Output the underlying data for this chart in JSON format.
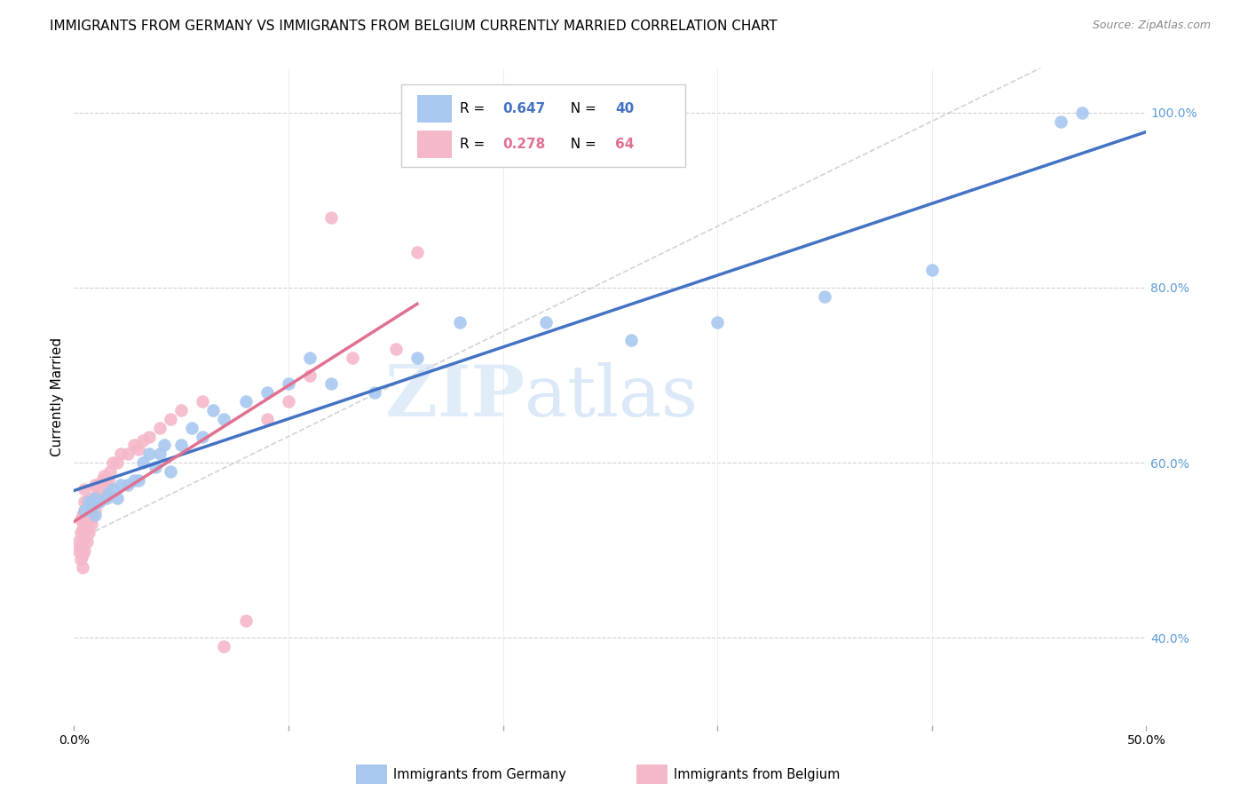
{
  "title": "IMMIGRANTS FROM GERMANY VS IMMIGRANTS FROM BELGIUM CURRENTLY MARRIED CORRELATION CHART",
  "source": "Source: ZipAtlas.com",
  "ylabel": "Currently Married",
  "xlim": [
    0.0,
    0.5
  ],
  "ylim": [
    0.3,
    1.05
  ],
  "xticks": [
    0.0,
    0.1,
    0.2,
    0.3,
    0.4,
    0.5
  ],
  "xtick_labels": [
    "0.0%",
    "",
    "",
    "",
    "",
    "50.0%"
  ],
  "yticks": [
    0.4,
    0.6,
    0.8,
    1.0
  ],
  "ytick_labels": [
    "40.0%",
    "60.0%",
    "80.0%",
    "100.0%"
  ],
  "right_ytick_color": "#5b9bd5",
  "germany_color": "#a8c8f0",
  "belgium_color": "#f5b8c8",
  "germany_line_color": "#4472c4",
  "belgium_line_color": "#e07090",
  "germany_R": 0.647,
  "germany_N": 40,
  "belgium_R": 0.278,
  "belgium_N": 64,
  "watermark_zip": "ZIP",
  "watermark_atlas": "atlas",
  "germany_points_x": [
    0.005,
    0.007,
    0.008,
    0.01,
    0.01,
    0.012,
    0.015,
    0.016,
    0.018,
    0.02,
    0.022,
    0.025,
    0.028,
    0.03,
    0.032,
    0.035,
    0.038,
    0.04,
    0.042,
    0.045,
    0.05,
    0.055,
    0.06,
    0.065,
    0.07,
    0.08,
    0.09,
    0.1,
    0.11,
    0.12,
    0.14,
    0.16,
    0.18,
    0.22,
    0.26,
    0.3,
    0.35,
    0.4,
    0.46,
    0.47
  ],
  "germany_points_y": [
    0.545,
    0.555,
    0.55,
    0.54,
    0.56,
    0.555,
    0.56,
    0.565,
    0.57,
    0.56,
    0.575,
    0.575,
    0.58,
    0.58,
    0.6,
    0.61,
    0.595,
    0.61,
    0.62,
    0.59,
    0.62,
    0.64,
    0.63,
    0.66,
    0.65,
    0.67,
    0.68,
    0.69,
    0.72,
    0.69,
    0.68,
    0.72,
    0.76,
    0.76,
    0.74,
    0.76,
    0.79,
    0.82,
    0.99,
    1.0
  ],
  "belgium_points_x": [
    0.002,
    0.002,
    0.003,
    0.003,
    0.003,
    0.003,
    0.004,
    0.004,
    0.004,
    0.004,
    0.004,
    0.005,
    0.005,
    0.005,
    0.005,
    0.005,
    0.005,
    0.006,
    0.006,
    0.006,
    0.006,
    0.007,
    0.007,
    0.007,
    0.008,
    0.008,
    0.008,
    0.009,
    0.009,
    0.01,
    0.01,
    0.01,
    0.011,
    0.011,
    0.012,
    0.012,
    0.013,
    0.013,
    0.014,
    0.014,
    0.015,
    0.016,
    0.017,
    0.018,
    0.02,
    0.022,
    0.025,
    0.028,
    0.03,
    0.032,
    0.035,
    0.04,
    0.045,
    0.05,
    0.06,
    0.07,
    0.08,
    0.09,
    0.1,
    0.11,
    0.12,
    0.13,
    0.15,
    0.16
  ],
  "belgium_points_y": [
    0.5,
    0.51,
    0.49,
    0.505,
    0.52,
    0.535,
    0.48,
    0.495,
    0.51,
    0.525,
    0.54,
    0.5,
    0.515,
    0.53,
    0.545,
    0.555,
    0.57,
    0.51,
    0.525,
    0.54,
    0.555,
    0.52,
    0.535,
    0.55,
    0.53,
    0.545,
    0.56,
    0.54,
    0.555,
    0.545,
    0.56,
    0.575,
    0.555,
    0.57,
    0.56,
    0.575,
    0.565,
    0.58,
    0.57,
    0.585,
    0.575,
    0.58,
    0.59,
    0.6,
    0.6,
    0.61,
    0.61,
    0.62,
    0.615,
    0.625,
    0.63,
    0.64,
    0.65,
    0.66,
    0.67,
    0.39,
    0.42,
    0.65,
    0.67,
    0.7,
    0.88,
    0.72,
    0.73,
    0.84
  ],
  "title_fontsize": 11,
  "axis_label_fontsize": 11,
  "tick_fontsize": 10,
  "legend_fontsize": 11
}
